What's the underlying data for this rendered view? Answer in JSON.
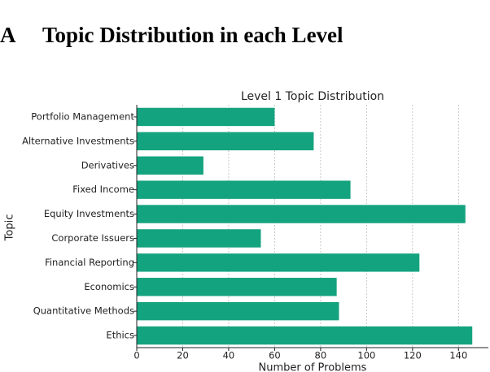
{
  "section": {
    "letter": "A",
    "title": "Topic Distribution in each Level"
  },
  "chart_data": {
    "type": "bar",
    "orientation": "horizontal",
    "title": "Level 1 Topic Distribution",
    "x_label": "Number of Problems",
    "y_label": "Topic",
    "categories": [
      "Portfolio Management",
      "Alternative Investments",
      "Derivatives",
      "Fixed Income",
      "Equity Investments",
      "Corporate Issuers",
      "Financial Reporting",
      "Economics",
      "Quantitative Methods",
      "Ethics"
    ],
    "values": [
      60,
      77,
      29,
      93,
      143,
      54,
      123,
      87,
      88,
      146
    ],
    "color": "#14a37f",
    "xlim": [
      0,
      153
    ],
    "xticks": [
      0,
      20,
      40,
      60,
      80,
      100,
      120,
      140
    ],
    "grid": true
  }
}
